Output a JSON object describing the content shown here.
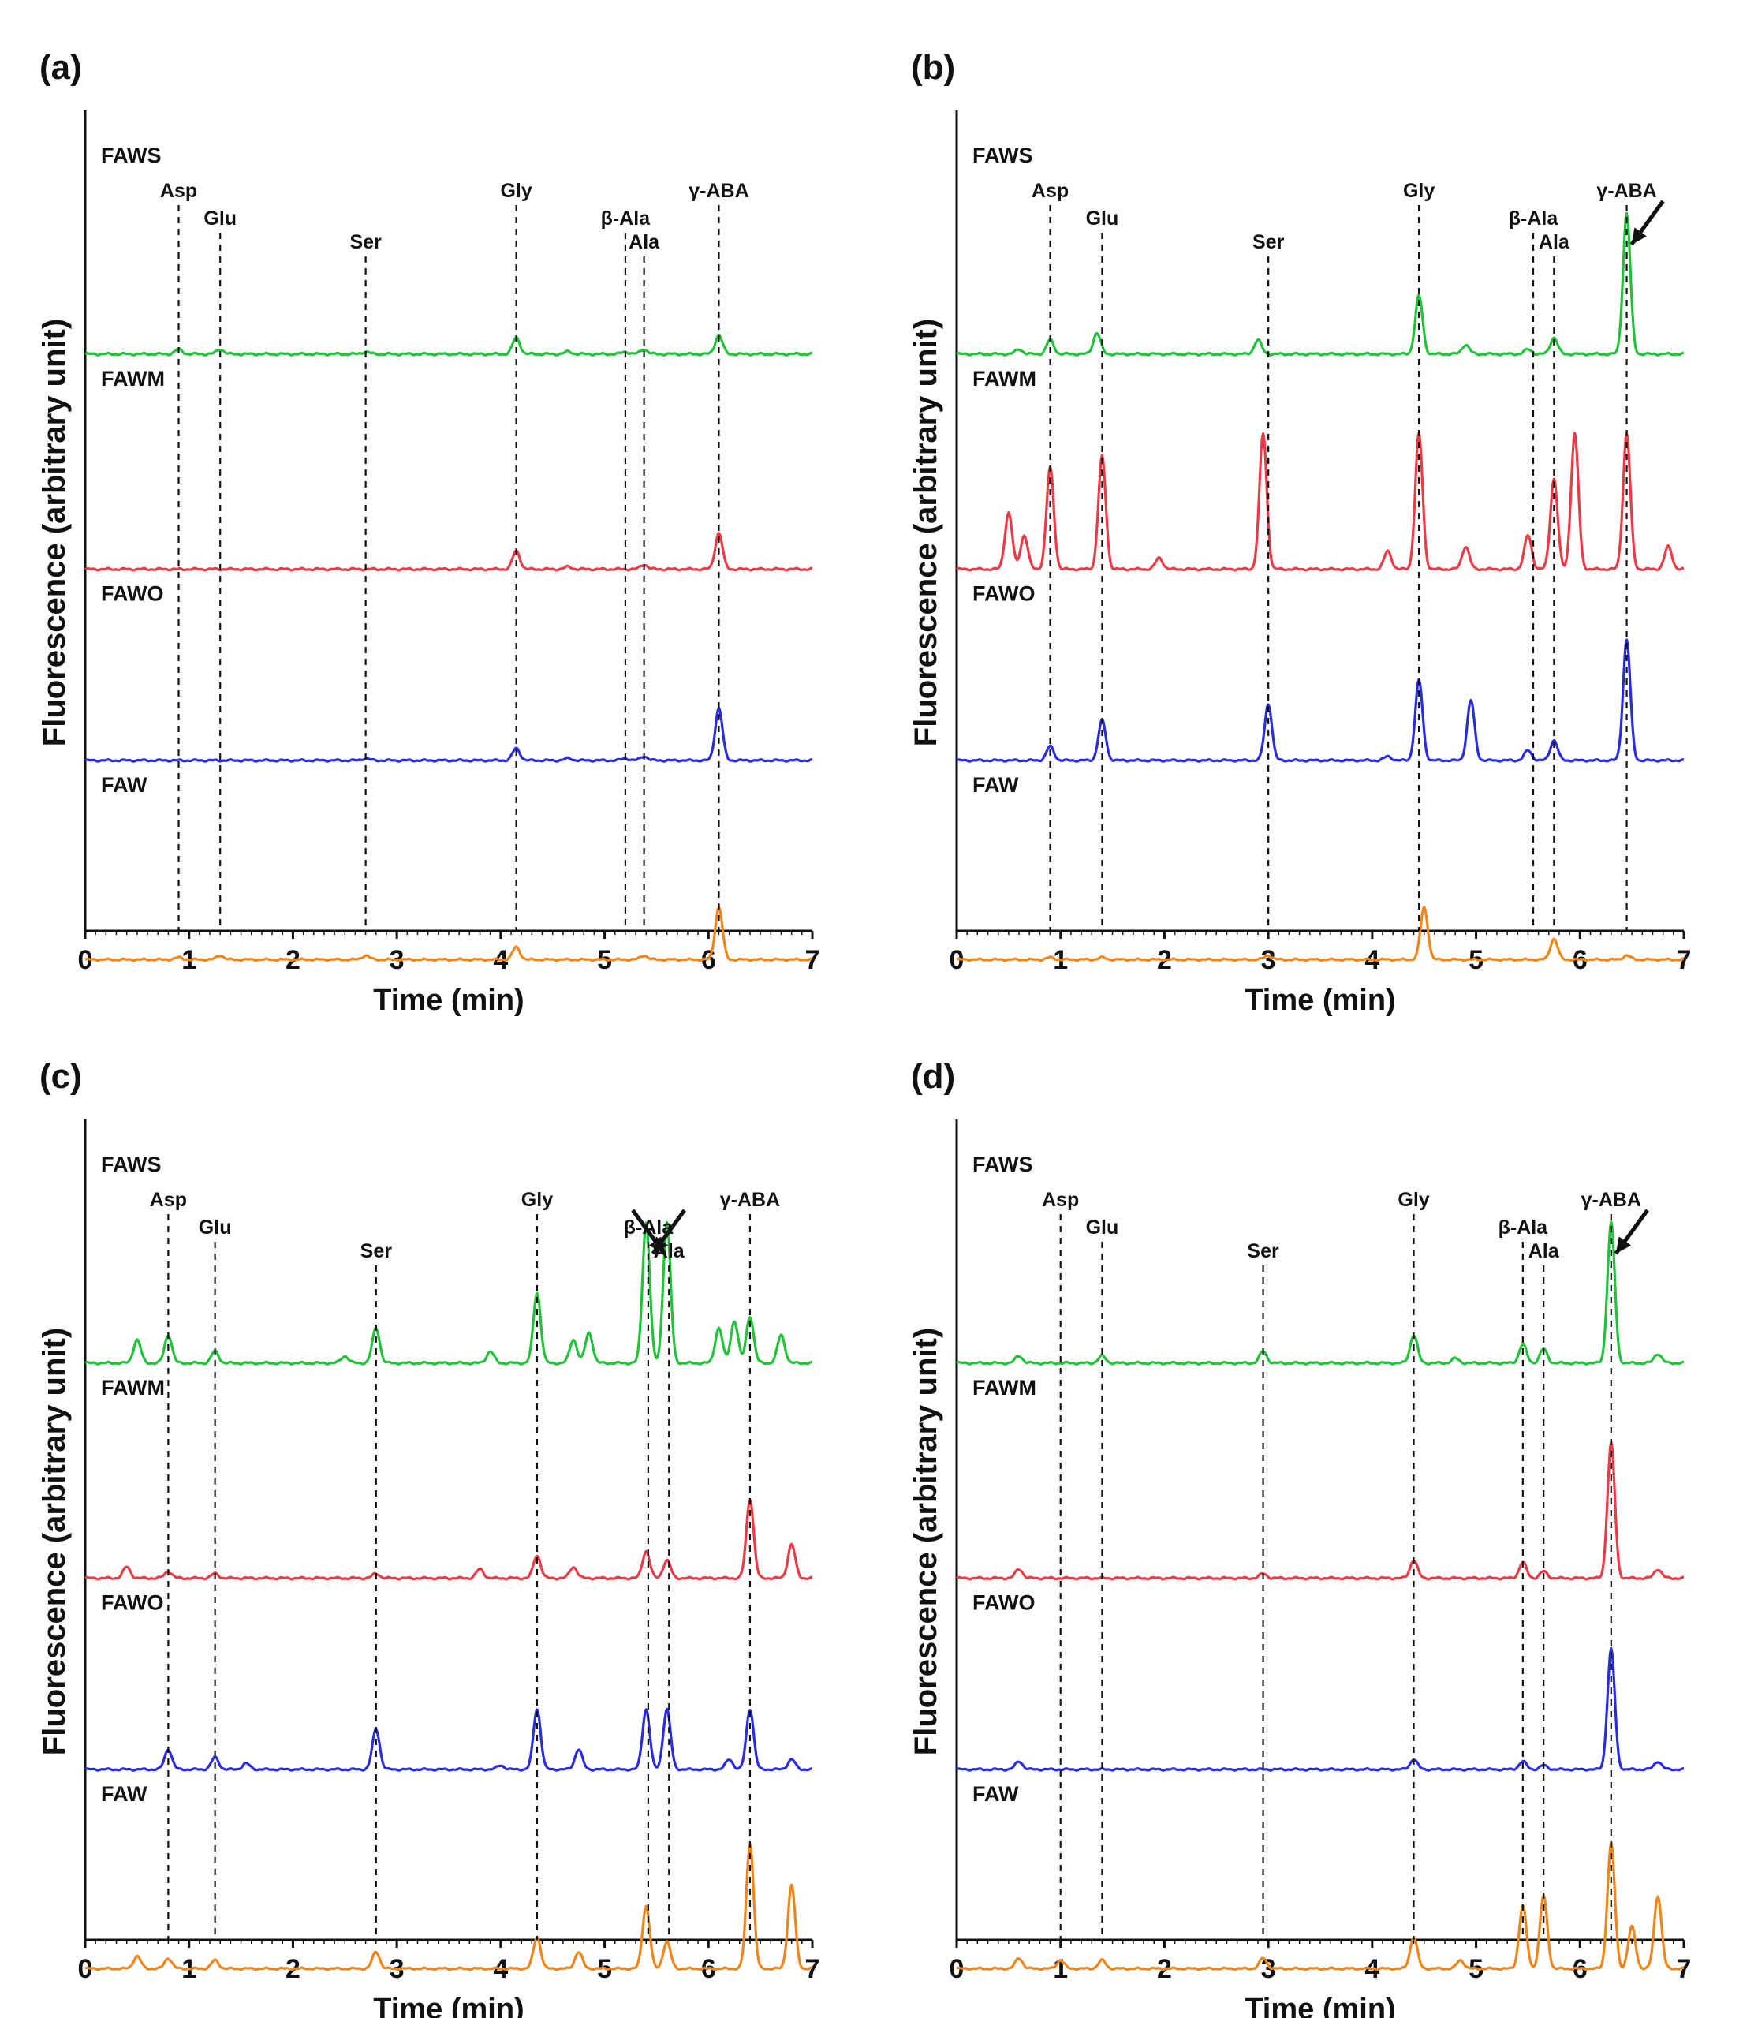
{
  "figure": {
    "ylabel": "Fluorescence (arbitrary unit)",
    "xlabel": "Time (min)"
  },
  "colors": {
    "FAWS": "#22c33a",
    "FAWM": "#ec3b46",
    "FAWO": "#2b2ce0",
    "FAW": "#f0861a",
    "axis": "#111111"
  },
  "chart_data": [
    {
      "type": "line",
      "title": "(a)",
      "xlabel": "Time (min)",
      "ylabel": "Fluorescence (arbitrary unit)",
      "xlim": [
        0,
        7
      ],
      "xticks": [
        "0",
        "1",
        "2",
        "3",
        "4",
        "5",
        "6",
        "7"
      ],
      "series": [
        {
          "name": "FAWS",
          "baseline": 0.62,
          "peaks": [
            [
              0.9,
              0.02
            ],
            [
              1.3,
              0.02
            ],
            [
              2.7,
              0.01
            ],
            [
              4.15,
              0.07
            ],
            [
              4.65,
              0.01
            ],
            [
              5.2,
              0.01
            ],
            [
              5.38,
              0.02
            ],
            [
              6.1,
              0.08
            ]
          ]
        },
        {
          "name": "FAWM",
          "baseline": 0.0,
          "peaks": [
            [
              4.15,
              0.08
            ],
            [
              4.65,
              0.01
            ],
            [
              5.38,
              0.02
            ],
            [
              6.1,
              0.16
            ]
          ]
        },
        {
          "name": "FAWO",
          "baseline": 0.0,
          "peaks": [
            [
              2.7,
              0.01
            ],
            [
              4.15,
              0.06
            ],
            [
              4.65,
              0.01
            ],
            [
              5.2,
              0.01
            ],
            [
              5.38,
              0.02
            ],
            [
              6.1,
              0.26
            ]
          ]
        },
        {
          "name": "FAW",
          "baseline": 0.0,
          "peaks": [
            [
              0.9,
              0.01
            ],
            [
              1.3,
              0.02
            ],
            [
              2.7,
              0.02
            ],
            [
              4.15,
              0.06
            ],
            [
              5.38,
              0.02
            ],
            [
              6.1,
              0.25
            ]
          ]
        }
      ],
      "markers": [
        {
          "label": "Asp",
          "x": 0.9
        },
        {
          "label": "Glu",
          "x": 1.3
        },
        {
          "label": "Ser",
          "x": 2.7
        },
        {
          "label": "Gly",
          "x": 4.15
        },
        {
          "label": "β-Ala",
          "x": 5.2
        },
        {
          "label": "Ala",
          "x": 5.38
        },
        {
          "label": "γ-ABA",
          "x": 6.1
        }
      ],
      "arrows": []
    },
    {
      "type": "line",
      "title": "(b)",
      "xlabel": "Time (min)",
      "ylabel": "Fluorescence (arbitrary unit)",
      "xlim": [
        0,
        7
      ],
      "xticks": [
        "0",
        "1",
        "2",
        "3",
        "4",
        "5",
        "6",
        "7"
      ],
      "series": [
        {
          "name": "FAWS",
          "baseline": 0.0,
          "peaks": [
            [
              0.6,
              0.02
            ],
            [
              0.9,
              0.06
            ],
            [
              1.35,
              0.09
            ],
            [
              2.9,
              0.06
            ],
            [
              4.45,
              0.25
            ],
            [
              4.9,
              0.04
            ],
            [
              5.5,
              0.02
            ],
            [
              5.75,
              0.07
            ],
            [
              6.45,
              0.6
            ]
          ]
        },
        {
          "name": "FAWM",
          "baseline": 0.0,
          "peaks": [
            [
              0.5,
              0.25
            ],
            [
              0.65,
              0.15
            ],
            [
              0.9,
              0.45
            ],
            [
              1.4,
              0.5
            ],
            [
              1.95,
              0.05
            ],
            [
              2.95,
              0.6
            ],
            [
              4.15,
              0.08
            ],
            [
              4.45,
              0.6
            ],
            [
              4.9,
              0.1
            ],
            [
              5.5,
              0.15
            ],
            [
              5.75,
              0.4
            ],
            [
              5.95,
              0.6
            ],
            [
              6.45,
              0.6
            ],
            [
              6.85,
              0.1
            ]
          ]
        },
        {
          "name": "FAWO",
          "baseline": 0.0,
          "peaks": [
            [
              0.9,
              0.07
            ],
            [
              1.4,
              0.2
            ],
            [
              3.0,
              0.28
            ],
            [
              4.15,
              0.02
            ],
            [
              4.45,
              0.4
            ],
            [
              4.95,
              0.3
            ],
            [
              5.5,
              0.05
            ],
            [
              5.75,
              0.1
            ],
            [
              6.45,
              0.6
            ]
          ]
        },
        {
          "name": "FAW",
          "baseline": 0.0,
          "peaks": [
            [
              0.9,
              0.01
            ],
            [
              1.4,
              0.01
            ],
            [
              3.0,
              0.02
            ],
            [
              4.5,
              0.25
            ],
            [
              5.75,
              0.1
            ],
            [
              6.45,
              0.02
            ]
          ]
        }
      ],
      "markers": [
        {
          "label": "Asp",
          "x": 0.9
        },
        {
          "label": "Glu",
          "x": 1.4
        },
        {
          "label": "Ser",
          "x": 3.0
        },
        {
          "label": "Gly",
          "x": 4.45
        },
        {
          "label": "β-Ala",
          "x": 5.55
        },
        {
          "label": "Ala",
          "x": 5.75
        },
        {
          "label": "γ-ABA",
          "x": 6.45
        }
      ],
      "arrows": [
        {
          "label": "γ-ABA",
          "x": 6.45
        }
      ]
    },
    {
      "type": "line",
      "title": "(c)",
      "xlabel": "Time (min)",
      "ylabel": "Fluorescence (arbitrary unit)",
      "xlim": [
        0,
        7
      ],
      "xticks": [
        "0",
        "1",
        "2",
        "3",
        "4",
        "5",
        "6",
        "7"
      ],
      "series": [
        {
          "name": "FAWS",
          "baseline": 0.0,
          "peaks": [
            [
              0.5,
              0.1
            ],
            [
              0.8,
              0.12
            ],
            [
              1.25,
              0.05
            ],
            [
              2.5,
              0.03
            ],
            [
              2.8,
              0.15
            ],
            [
              3.9,
              0.05
            ],
            [
              4.35,
              0.3
            ],
            [
              4.7,
              0.1
            ],
            [
              4.85,
              0.13
            ],
            [
              5.4,
              0.6
            ],
            [
              5.6,
              0.6
            ],
            [
              6.1,
              0.15
            ],
            [
              6.25,
              0.18
            ],
            [
              6.4,
              0.2
            ],
            [
              6.7,
              0.12
            ]
          ]
        },
        {
          "name": "FAWM",
          "baseline": 0.0,
          "peaks": [
            [
              0.4,
              0.05
            ],
            [
              0.8,
              0.03
            ],
            [
              1.25,
              0.02
            ],
            [
              2.8,
              0.02
            ],
            [
              3.8,
              0.04
            ],
            [
              4.35,
              0.1
            ],
            [
              4.7,
              0.05
            ],
            [
              5.4,
              0.12
            ],
            [
              5.6,
              0.08
            ],
            [
              6.4,
              0.35
            ],
            [
              6.8,
              0.15
            ]
          ]
        },
        {
          "name": "FAWO",
          "baseline": 0.0,
          "peaks": [
            [
              0.8,
              0.1
            ],
            [
              1.25,
              0.06
            ],
            [
              1.55,
              0.03
            ],
            [
              2.8,
              0.2
            ],
            [
              4.0,
              0.02
            ],
            [
              4.35,
              0.3
            ],
            [
              4.75,
              0.1
            ],
            [
              5.4,
              0.3
            ],
            [
              5.6,
              0.3
            ],
            [
              6.2,
              0.05
            ],
            [
              6.4,
              0.3
            ],
            [
              6.8,
              0.05
            ]
          ]
        },
        {
          "name": "FAW",
          "baseline": 0.0,
          "peaks": [
            [
              0.5,
              0.06
            ],
            [
              0.8,
              0.05
            ],
            [
              1.25,
              0.04
            ],
            [
              2.8,
              0.08
            ],
            [
              4.35,
              0.15
            ],
            [
              4.75,
              0.08
            ],
            [
              5.4,
              0.3
            ],
            [
              5.6,
              0.13
            ],
            [
              6.4,
              0.6
            ],
            [
              6.8,
              0.4
            ]
          ]
        }
      ],
      "markers": [
        {
          "label": "Asp",
          "x": 0.8
        },
        {
          "label": "Glu",
          "x": 1.25
        },
        {
          "label": "Ser",
          "x": 2.8
        },
        {
          "label": "Gly",
          "x": 4.35
        },
        {
          "label": "β-Ala",
          "x": 5.42
        },
        {
          "label": "Ala",
          "x": 5.62
        },
        {
          "label": "γ-ABA",
          "x": 6.4
        }
      ],
      "arrows": [
        {
          "label": "β-Ala",
          "x": 5.42
        },
        {
          "label": "Ala",
          "x": 5.62
        }
      ]
    },
    {
      "type": "line",
      "title": "(d)",
      "xlabel": "Time (min)",
      "ylabel": "Fluorescence (arbitrary unit)",
      "xlim": [
        0,
        7
      ],
      "xticks": [
        "0",
        "1",
        "2",
        "3",
        "4",
        "5",
        "6",
        "7"
      ],
      "series": [
        {
          "name": "FAWS",
          "baseline": 0.0,
          "peaks": [
            [
              0.6,
              0.03
            ],
            [
              1.4,
              0.03
            ],
            [
              2.95,
              0.05
            ],
            [
              4.4,
              0.12
            ],
            [
              4.8,
              0.02
            ],
            [
              5.45,
              0.08
            ],
            [
              5.65,
              0.06
            ],
            [
              6.3,
              0.6
            ],
            [
              6.75,
              0.04
            ]
          ]
        },
        {
          "name": "FAWM",
          "baseline": 0.0,
          "peaks": [
            [
              0.6,
              0.04
            ],
            [
              2.95,
              0.02
            ],
            [
              4.4,
              0.08
            ],
            [
              5.45,
              0.07
            ],
            [
              5.65,
              0.03
            ],
            [
              6.3,
              0.6
            ],
            [
              6.75,
              0.04
            ]
          ]
        },
        {
          "name": "FAWO",
          "baseline": 0.0,
          "peaks": [
            [
              0.6,
              0.04
            ],
            [
              4.4,
              0.05
            ],
            [
              5.45,
              0.04
            ],
            [
              5.65,
              0.02
            ],
            [
              6.3,
              0.6
            ],
            [
              6.75,
              0.04
            ]
          ]
        },
        {
          "name": "FAW",
          "baseline": 0.0,
          "peaks": [
            [
              0.6,
              0.05
            ],
            [
              1.0,
              0.04
            ],
            [
              1.4,
              0.04
            ],
            [
              2.95,
              0.05
            ],
            [
              4.4,
              0.15
            ],
            [
              4.85,
              0.04
            ],
            [
              5.45,
              0.3
            ],
            [
              5.65,
              0.35
            ],
            [
              6.3,
              0.6
            ],
            [
              6.5,
              0.2
            ],
            [
              6.75,
              0.35
            ]
          ]
        }
      ],
      "markers": [
        {
          "label": "Asp",
          "x": 1.0
        },
        {
          "label": "Glu",
          "x": 1.4
        },
        {
          "label": "Ser",
          "x": 2.95
        },
        {
          "label": "Gly",
          "x": 4.4
        },
        {
          "label": "β-Ala",
          "x": 5.45
        },
        {
          "label": "Ala",
          "x": 5.65
        },
        {
          "label": "γ-ABA",
          "x": 6.3
        }
      ],
      "arrows": [
        {
          "label": "γ-ABA",
          "x": 6.3
        }
      ]
    }
  ]
}
